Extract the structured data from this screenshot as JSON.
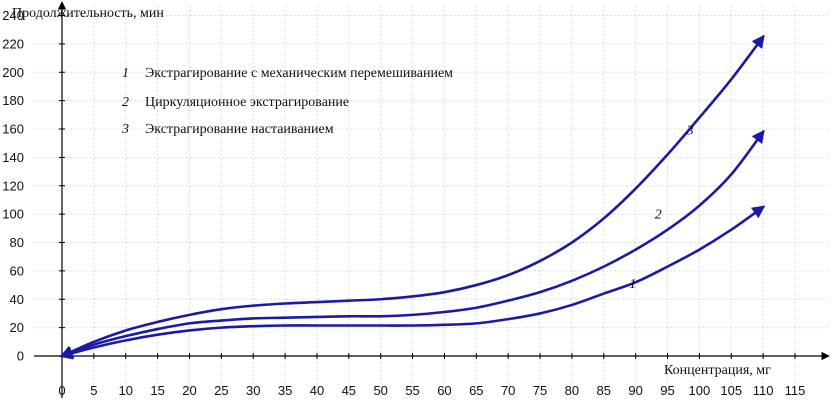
{
  "chart_data": {
    "type": "line",
    "ylabel": "Продолжительность, мин",
    "xlabel": "Концентрация, мг",
    "xlim": [
      0,
      115
    ],
    "ylim": [
      0,
      240
    ],
    "x_ticks": [
      0,
      5,
      10,
      15,
      20,
      25,
      30,
      35,
      40,
      45,
      50,
      55,
      60,
      65,
      70,
      75,
      80,
      85,
      90,
      95,
      100,
      105,
      110,
      115
    ],
    "y_ticks": [
      0,
      20,
      40,
      60,
      80,
      100,
      120,
      140,
      160,
      180,
      200,
      220,
      240
    ],
    "grid": true,
    "line_color": "#1a1aa6",
    "legend": [
      {
        "number": "1",
        "text": "Экстрагирование с механическим перемешиванием"
      },
      {
        "number": "2",
        "text": "Циркуляционное экстрагирование"
      },
      {
        "number": "3",
        "text": "Экстрагирование настаиванием"
      }
    ],
    "series": [
      {
        "label": "1",
        "label_at": [
          89,
          48
        ],
        "x": [
          0,
          5,
          10,
          15,
          20,
          25,
          30,
          35,
          40,
          45,
          50,
          55,
          60,
          65,
          70,
          75,
          80,
          85,
          90,
          95,
          100,
          105,
          110
        ],
        "y": [
          0,
          6,
          11,
          15,
          18,
          20,
          21,
          21.5,
          21.5,
          21.5,
          21.5,
          21.5,
          22,
          23,
          26,
          30,
          36,
          44,
          52,
          63,
          75,
          89,
          105
        ]
      },
      {
        "label": "2",
        "label_at": [
          93,
          97
        ],
        "x": [
          0,
          5,
          10,
          15,
          20,
          25,
          30,
          35,
          40,
          45,
          50,
          55,
          60,
          65,
          70,
          75,
          80,
          85,
          90,
          95,
          100,
          105,
          110
        ],
        "y": [
          0,
          8,
          14,
          19,
          23,
          25,
          26.5,
          27,
          27.5,
          28,
          28,
          29,
          31,
          34,
          39,
          45,
          53,
          63,
          75,
          89,
          106,
          128,
          158
        ]
      },
      {
        "label": "3",
        "label_at": [
          98,
          156
        ],
        "x": [
          0,
          5,
          10,
          15,
          20,
          25,
          30,
          35,
          40,
          45,
          50,
          55,
          60,
          65,
          70,
          75,
          80,
          85,
          90,
          95,
          100,
          105,
          110
        ],
        "y": [
          0,
          10,
          18,
          24,
          29,
          33,
          35.5,
          37,
          38,
          39,
          40,
          42,
          45,
          50,
          57,
          67,
          80,
          97,
          118,
          142,
          168,
          195,
          225
        ]
      }
    ]
  }
}
